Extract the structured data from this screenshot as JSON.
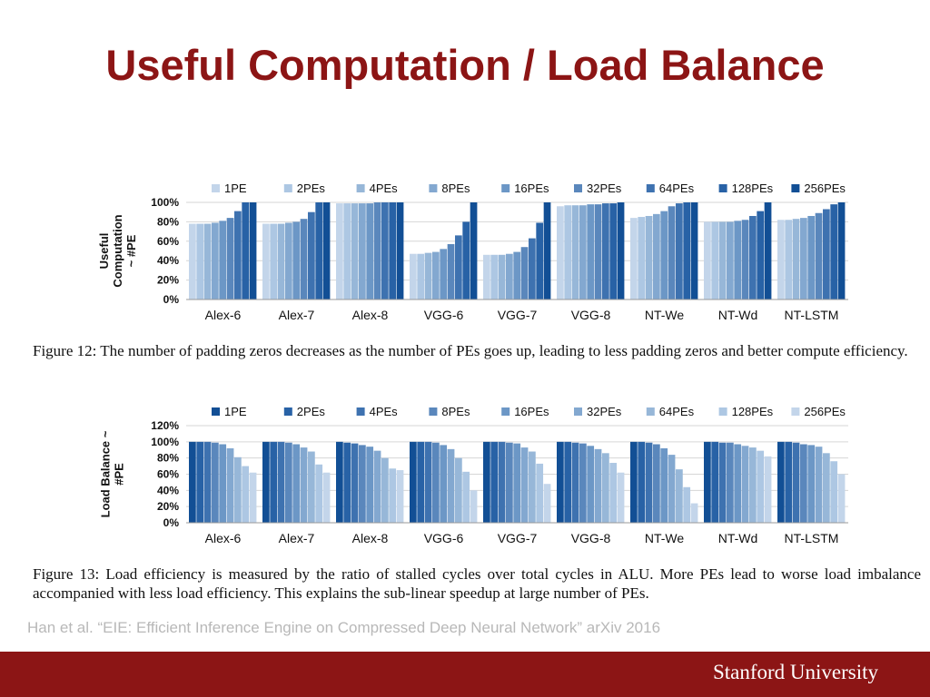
{
  "slide": {
    "title": "Useful Computation / Load Balance",
    "citation": "Han et al. “EIE: Efficient Inference Engine on Compressed Deep Neural Network” arXiv 2016",
    "footer_brand": "Stanford University"
  },
  "colors": {
    "brand": "#8c1515",
    "pe_scale": [
      "#c3d5ea",
      "#adc7e3",
      "#97b7d8",
      "#83a8d0",
      "#6c97c6",
      "#5a87bc",
      "#3e72b0",
      "#2862a6",
      "#124f95"
    ]
  },
  "captions": {
    "fig12": "Figure 12: The number of padding zeros decreases as the number of PEs goes up, leading to less padding zeros and better compute efficiency.",
    "fig13": "Figure 13: Load efficiency is measured by the ratio of stalled cycles over total cycles in ALU. More PEs lead to worse load imbalance accompanied with less load efficiency. This explains the sub-linear speedup at large number of PEs."
  },
  "chart_data": [
    {
      "type": "bar",
      "ylabel": "Useful Computation ~ #PE",
      "ylabel_lines": [
        "Useful",
        "Computation",
        "~ #PE"
      ],
      "ylim": [
        0,
        100
      ],
      "yticks": [
        "0%",
        "20%",
        "40%",
        "60%",
        "80%",
        "100%"
      ],
      "grid": true,
      "legend_position": "top",
      "categories": [
        "Alex-6",
        "Alex-7",
        "Alex-8",
        "VGG-6",
        "VGG-7",
        "VGG-8",
        "NT-We",
        "NT-Wd",
        "NT-LSTM"
      ],
      "series": [
        {
          "name": "1PE",
          "values": [
            78,
            78,
            99,
            47,
            46,
            96,
            84,
            80,
            82
          ]
        },
        {
          "name": "2PEs",
          "values": [
            78,
            78,
            99,
            47,
            46,
            97,
            85,
            80,
            82
          ]
        },
        {
          "name": "4PEs",
          "values": [
            78,
            78,
            99,
            48,
            46,
            97,
            86,
            80,
            83
          ]
        },
        {
          "name": "8PEs",
          "values": [
            79,
            79,
            99,
            49,
            47,
            97,
            88,
            80,
            84
          ]
        },
        {
          "name": "16PEs",
          "values": [
            81,
            80,
            99,
            52,
            49,
            98,
            91,
            81,
            86
          ]
        },
        {
          "name": "32PEs",
          "values": [
            84,
            83,
            100,
            57,
            54,
            98,
            96,
            82,
            89
          ]
        },
        {
          "name": "64PEs",
          "values": [
            91,
            90,
            100,
            66,
            63,
            99,
            99,
            86,
            93
          ]
        },
        {
          "name": "128PEs",
          "values": [
            100,
            100,
            100,
            80,
            79,
            99,
            100,
            91,
            98
          ]
        },
        {
          "name": "256PEs",
          "values": [
            100,
            100,
            100,
            100,
            100,
            100,
            100,
            100,
            100
          ]
        }
      ]
    },
    {
      "type": "bar",
      "ylabel": "Load Balance ~ #PE",
      "ylabel_lines": [
        "Load Balance ~",
        "#PE"
      ],
      "ylim": [
        0,
        120
      ],
      "yticks": [
        "0%",
        "20%",
        "40%",
        "60%",
        "80%",
        "100%",
        "120%"
      ],
      "grid": true,
      "legend_position": "top",
      "categories": [
        "Alex-6",
        "Alex-7",
        "Alex-8",
        "VGG-6",
        "VGG-7",
        "VGG-8",
        "NT-We",
        "NT-Wd",
        "NT-LSTM"
      ],
      "series": [
        {
          "name": "1PE",
          "values": [
            100,
            100,
            100,
            100,
            100,
            100,
            100,
            100,
            100
          ]
        },
        {
          "name": "2PEs",
          "values": [
            100,
            100,
            99,
            100,
            100,
            100,
            100,
            100,
            100
          ]
        },
        {
          "name": "4PEs",
          "values": [
            100,
            100,
            98,
            100,
            100,
            99,
            99,
            99,
            99
          ]
        },
        {
          "name": "8PEs",
          "values": [
            99,
            99,
            96,
            99,
            99,
            98,
            97,
            99,
            97
          ]
        },
        {
          "name": "16PEs",
          "values": [
            97,
            97,
            94,
            96,
            98,
            95,
            92,
            97,
            96
          ]
        },
        {
          "name": "32PEs",
          "values": [
            92,
            93,
            89,
            91,
            93,
            91,
            84,
            95,
            94
          ]
        },
        {
          "name": "64PEs",
          "values": [
            81,
            88,
            80,
            80,
            88,
            86,
            66,
            93,
            86
          ]
        },
        {
          "name": "128PEs",
          "values": [
            70,
            72,
            67,
            63,
            73,
            74,
            44,
            89,
            76
          ]
        },
        {
          "name": "256PEs",
          "values": [
            62,
            62,
            65,
            40,
            48,
            62,
            24,
            82,
            60
          ]
        }
      ]
    }
  ]
}
